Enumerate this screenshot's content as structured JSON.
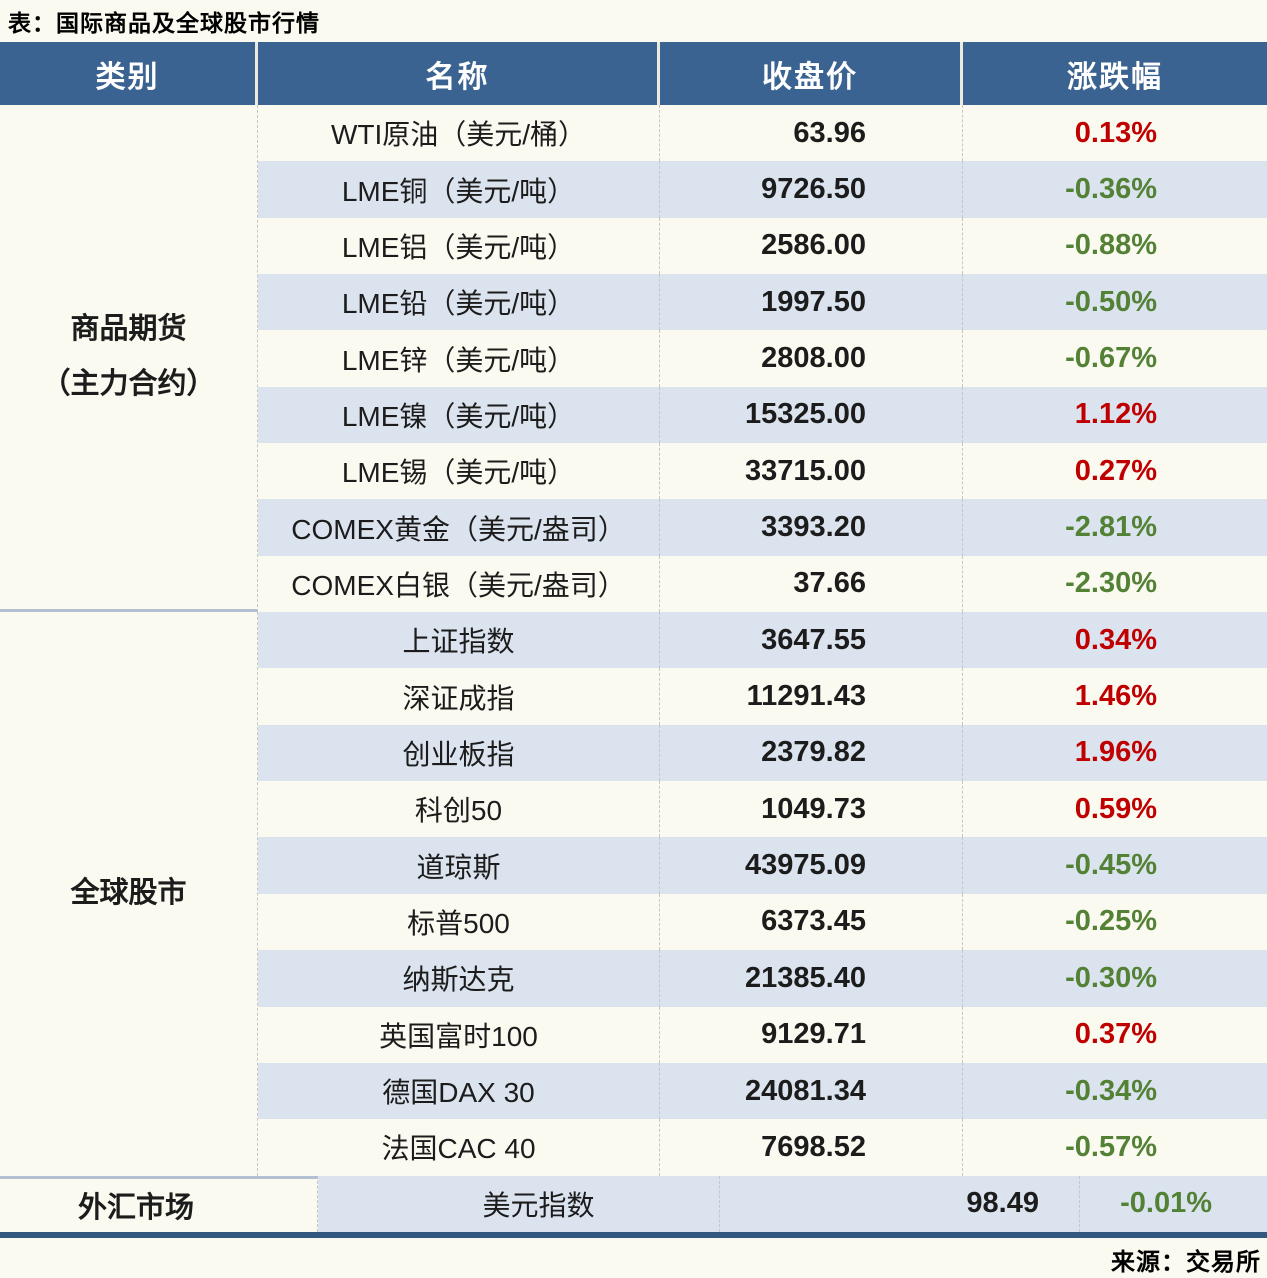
{
  "title": "表：国际商品及全球股市行情",
  "source": "来源：交易所",
  "colors": {
    "header_bg": "#3a6391",
    "row_stripe": "#dbe3ee",
    "positive_red": "#c00000",
    "negative_green": "#538135",
    "bottom_border": "#33587e"
  },
  "chart_data": {
    "type": "table",
    "title": "表：国际商品及全球股市行情",
    "columns": [
      "类别",
      "名称",
      "收盘价",
      "涨跌幅"
    ],
    "groups": [
      {
        "category": "商品期货",
        "category_line2": "（主力合约）",
        "rows": [
          {
            "name": "WTI原油（美元/桶）",
            "close": "63.96",
            "change": "0.13%"
          },
          {
            "name": "LME铜（美元/吨）",
            "close": "9726.50",
            "change": "-0.36%"
          },
          {
            "name": "LME铝（美元/吨）",
            "close": "2586.00",
            "change": "-0.88%"
          },
          {
            "name": "LME铅（美元/吨）",
            "close": "1997.50",
            "change": "-0.50%"
          },
          {
            "name": "LME锌（美元/吨）",
            "close": "2808.00",
            "change": "-0.67%"
          },
          {
            "name": "LME镍（美元/吨）",
            "close": "15325.00",
            "change": "1.12%"
          },
          {
            "name": "LME锡（美元/吨）",
            "close": "33715.00",
            "change": "0.27%"
          },
          {
            "name": "COMEX黄金（美元/盎司）",
            "close": "3393.20",
            "change": "-2.81%"
          },
          {
            "name": "COMEX白银（美元/盎司）",
            "close": "37.66",
            "change": "-2.30%"
          }
        ]
      },
      {
        "category": "全球股市",
        "rows": [
          {
            "name": "上证指数",
            "close": "3647.55",
            "change": "0.34%"
          },
          {
            "name": "深证成指",
            "close": "11291.43",
            "change": "1.46%"
          },
          {
            "name": "创业板指",
            "close": "2379.82",
            "change": "1.96%"
          },
          {
            "name": "科创50",
            "close": "1049.73",
            "change": "0.59%"
          },
          {
            "name": "道琼斯",
            "close": "43975.09",
            "change": "-0.45%"
          },
          {
            "name": "标普500",
            "close": "6373.45",
            "change": "-0.25%"
          },
          {
            "name": "纳斯达克",
            "close": "21385.40",
            "change": "-0.30%"
          },
          {
            "name": "英国富时100",
            "close": "9129.71",
            "change": "0.37%"
          },
          {
            "name": "德国DAX 30",
            "close": "24081.34",
            "change": "-0.34%"
          },
          {
            "name": "法国CAC 40",
            "close": "7698.52",
            "change": "-0.57%"
          }
        ]
      },
      {
        "category": "外汇市场",
        "rows": [
          {
            "name": "美元指数",
            "close": "98.49",
            "change": "-0.01%"
          }
        ]
      }
    ]
  }
}
